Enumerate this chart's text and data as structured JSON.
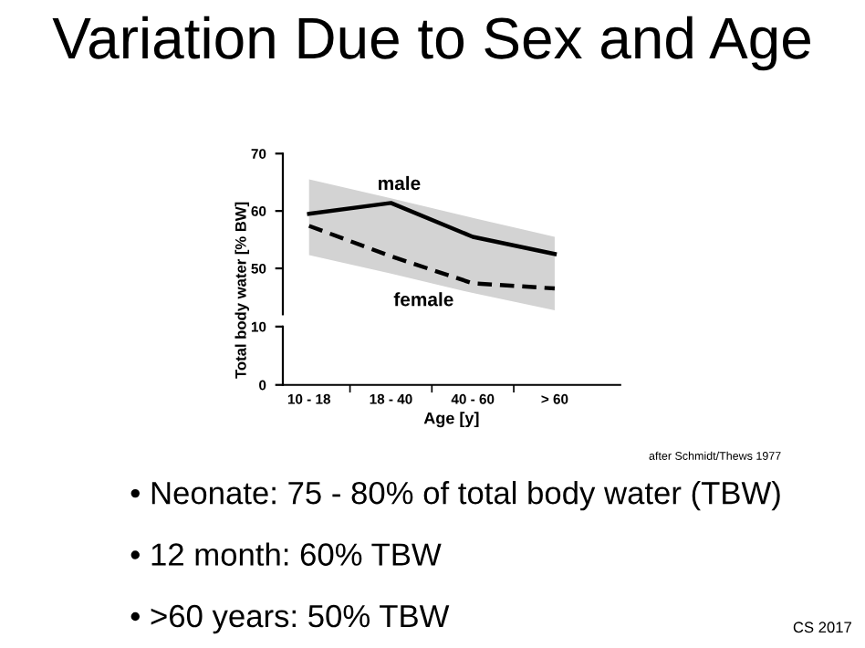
{
  "chart_data": [
    {
      "type": "line",
      "title": "Variation Due to Sex and Age",
      "ylabel": "Total body water [% BW]",
      "categories": [
        "10 - 18",
        "18 - 40",
        "40 - 60",
        "> 60"
      ],
      "series": [
        {
          "type": "area",
          "color": "#d3d3d3",
          "values": [
            null,
            null,
            null,
            null
          ],
          "lower": [
            52.3,
            49.1,
            45.7,
            42.7
          ],
          "upper": [
            65.5,
            62.2,
            58.8,
            55.5
          ]
        },
        {
          "name": "male",
          "color": "#000000",
          "line_style": "solid",
          "values": [
            59.5,
            61.4,
            55.5,
            52.5
          ]
        },
        {
          "name": "female",
          "color": "#000000",
          "line_style": "dashed",
          "values": [
            57.4,
            52.1,
            47.4,
            46.5
          ]
        }
      ],
      "ylim": [
        42,
        70
      ],
      "yticks": [
        50,
        60,
        70
      ],
      "grid": false,
      "legend": false,
      "marker": "none",
      "annotations": [
        "after Schmidt/Thews 1977",
        "• Neonate: 75 - 80% of total body water (TBW)",
        "• 12 month: 60% TBW",
        "• >60 years: 50% TBW",
        "CS 2017"
      ]
    },
    {
      "type": "line",
      "xlabel": "Age [y]",
      "categories": [
        null,
        null,
        null,
        null
      ],
      "ylim": [
        0,
        10
      ],
      "yticks": [
        0,
        10
      ],
      "tick_labels": "y",
      "grid": false,
      "legend": false
    }
  ]
}
